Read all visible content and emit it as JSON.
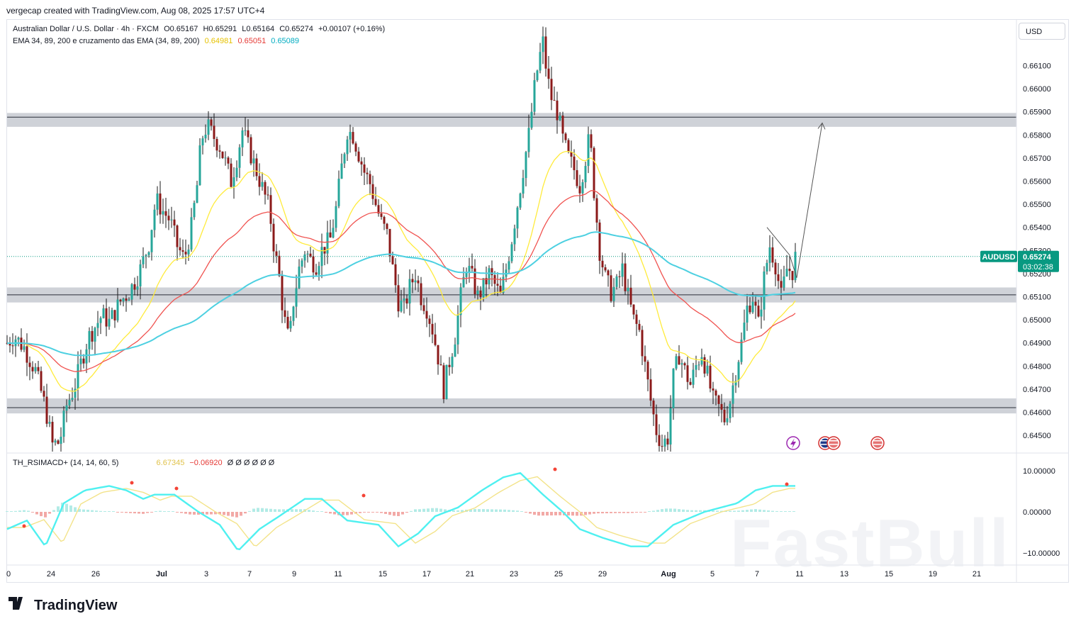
{
  "credit": "vergecap created with TradingView.com, Aug 08, 2025 17:57 UTC+4",
  "currency_button": "USD",
  "brand": "TradingView",
  "watermark": "FastBull",
  "legend": {
    "symbol": "Australian Dollar / U.S. Dollar · 4h · FXCM",
    "open": "O0.65167",
    "high": "H0.65291",
    "low": "L0.65164",
    "close": "C0.65274",
    "change": "+0.00107 (+0.16%)",
    "ema_title": "EMA 34, 89, 200 e cruzamento das EMA (34, 89, 200)",
    "ema34": "0.64981",
    "ema89": "0.65051",
    "ema200": "0.65089",
    "osc_title": "TH_RSIMACD+ (14, 14, 60, 5)",
    "osc_v1": "6.67345",
    "osc_v2": "−0.06920",
    "osc_rest": "Ø Ø Ø Ø Ø Ø"
  },
  "price_tag": {
    "symbol": "AUDUSD",
    "price": "0.65274",
    "countdown": "03:02:38"
  },
  "colors": {
    "bull": "#26a69a",
    "bear": "#8b1a1a",
    "ema34": "#ffeb3b",
    "ema89": "#f05350",
    "ema200": "#4dd0e1",
    "zone": "#cfd2d8",
    "tag": "#089981",
    "osc_fast": "#4ff0f0",
    "osc_slow": "#f3e38a"
  },
  "chart_data": {
    "type": "candlestick",
    "symbol": "AUDUSD",
    "timeframe": "4h",
    "y_axis": [
      "0.66100",
      "0.66000",
      "0.65900",
      "0.65800",
      "0.65700",
      "0.65600",
      "0.65500",
      "0.65400",
      "0.65300",
      "0.65200",
      "0.65100",
      "0.65000",
      "0.64900",
      "0.64800",
      "0.64700",
      "0.64600",
      "0.64500"
    ],
    "y_range": [
      0.6443,
      0.6625
    ],
    "x_axis": [
      "0",
      "24",
      "26",
      "Jul",
      "3",
      "7",
      "9",
      "11",
      "15",
      "17",
      "21",
      "23",
      "25",
      "29",
      "Aug",
      "5",
      "7",
      "11",
      "13",
      "15",
      "19",
      "21"
    ],
    "osc_axis": [
      "10.00000",
      "0.00000",
      "−10.00000"
    ],
    "zones": [
      {
        "low": 0.65835,
        "high": 0.65895
      },
      {
        "low": 0.65075,
        "high": 0.6514
      },
      {
        "low": 0.64595,
        "high": 0.6466
      }
    ],
    "zone_lines": [
      0.65877,
      0.65108,
      0.6462
    ],
    "last_price": 0.65274,
    "projection": [
      [
        0.65274,
        0.65864
      ]
    ],
    "close_path": [
      [
        0,
        0.649
      ],
      [
        5,
        0.6493
      ],
      [
        12,
        0.6488
      ],
      [
        20,
        0.6478
      ],
      [
        27,
        0.6462
      ],
      [
        32,
        0.6446
      ],
      [
        37,
        0.6447
      ],
      [
        42,
        0.6463
      ],
      [
        47,
        0.647
      ],
      [
        52,
        0.6481
      ],
      [
        57,
        0.6492
      ],
      [
        62,
        0.6497
      ],
      [
        67,
        0.6502
      ],
      [
        72,
        0.6499
      ],
      [
        80,
        0.6508
      ],
      [
        86,
        0.6512
      ],
      [
        93,
        0.652
      ],
      [
        100,
        0.6533
      ],
      [
        105,
        0.6552
      ],
      [
        110,
        0.6547
      ],
      [
        115,
        0.6543
      ],
      [
        120,
        0.6532
      ],
      [
        125,
        0.6526
      ],
      [
        130,
        0.654
      ],
      [
        134,
        0.6558
      ],
      [
        137,
        0.6578
      ],
      [
        141,
        0.6584
      ],
      [
        145,
        0.658
      ],
      [
        150,
        0.6575
      ],
      [
        154,
        0.6568
      ],
      [
        158,
        0.656
      ],
      [
        162,
        0.657
      ],
      [
        166,
        0.6582
      ],
      [
        170,
        0.6575
      ],
      [
        175,
        0.6566
      ],
      [
        180,
        0.6557
      ],
      [
        185,
        0.6548
      ],
      [
        188,
        0.6533
      ],
      [
        192,
        0.6518
      ],
      [
        195,
        0.6502
      ],
      [
        199,
        0.649
      ],
      [
        202,
        0.6508
      ],
      [
        206,
        0.6522
      ],
      [
        210,
        0.653
      ],
      [
        214,
        0.6526
      ],
      [
        218,
        0.6524
      ],
      [
        222,
        0.653
      ],
      [
        228,
        0.6535
      ],
      [
        232,
        0.6548
      ],
      [
        236,
        0.6566
      ],
      [
        240,
        0.6582
      ],
      [
        244,
        0.658
      ],
      [
        248,
        0.6572
      ],
      [
        252,
        0.6564
      ],
      [
        256,
        0.6559
      ],
      [
        260,
        0.655
      ],
      [
        264,
        0.6542
      ],
      [
        268,
        0.6537
      ],
      [
        272,
        0.6522
      ],
      [
        276,
        0.6508
      ],
      [
        280,
        0.6505
      ],
      [
        284,
        0.6514
      ],
      [
        288,
        0.652
      ],
      [
        292,
        0.651
      ],
      [
        296,
        0.6505
      ],
      [
        300,
        0.6496
      ],
      [
        304,
        0.6484
      ],
      [
        308,
        0.647
      ],
      [
        312,
        0.6482
      ],
      [
        316,
        0.6493
      ],
      [
        320,
        0.651
      ],
      [
        324,
        0.6524
      ],
      [
        328,
        0.6518
      ],
      [
        332,
        0.651
      ],
      [
        336,
        0.6514
      ],
      [
        340,
        0.652
      ],
      [
        344,
        0.6515
      ],
      [
        348,
        0.651
      ],
      [
        352,
        0.6522
      ],
      [
        356,
        0.6535
      ],
      [
        360,
        0.655
      ],
      [
        364,
        0.6565
      ],
      [
        368,
        0.658
      ],
      [
        372,
        0.66
      ],
      [
        375,
        0.6612
      ],
      [
        378,
        0.662
      ],
      [
        381,
        0.6605
      ],
      [
        384,
        0.6596
      ],
      [
        388,
        0.659
      ],
      [
        392,
        0.6578
      ],
      [
        396,
        0.657
      ],
      [
        400,
        0.6565
      ],
      [
        404,
        0.6558
      ],
      [
        408,
        0.657
      ],
      [
        411,
        0.658
      ],
      [
        414,
        0.6556
      ],
      [
        418,
        0.653
      ],
      [
        422,
        0.6518
      ],
      [
        426,
        0.6512
      ],
      [
        430,
        0.6515
      ],
      [
        434,
        0.6522
      ],
      [
        438,
        0.651
      ],
      [
        442,
        0.65
      ],
      [
        446,
        0.6495
      ],
      [
        450,
        0.648
      ],
      [
        454,
        0.6465
      ],
      [
        458,
        0.6452
      ],
      [
        462,
        0.6446
      ],
      [
        466,
        0.6449
      ],
      [
        470,
        0.6475
      ],
      [
        474,
        0.6485
      ],
      [
        478,
        0.6478
      ],
      [
        482,
        0.6472
      ],
      [
        486,
        0.648
      ],
      [
        490,
        0.6486
      ],
      [
        494,
        0.6476
      ],
      [
        498,
        0.6465
      ],
      [
        502,
        0.6462
      ],
      [
        506,
        0.6457
      ],
      [
        510,
        0.6465
      ],
      [
        514,
        0.6478
      ],
      [
        518,
        0.649
      ],
      [
        522,
        0.6505
      ],
      [
        526,
        0.651
      ],
      [
        530,
        0.6498
      ],
      [
        534,
        0.6518
      ],
      [
        538,
        0.6532
      ],
      [
        542,
        0.6524
      ],
      [
        546,
        0.651
      ],
      [
        550,
        0.6522
      ],
      [
        554,
        0.6521
      ],
      [
        556,
        0.6527
      ]
    ]
  }
}
